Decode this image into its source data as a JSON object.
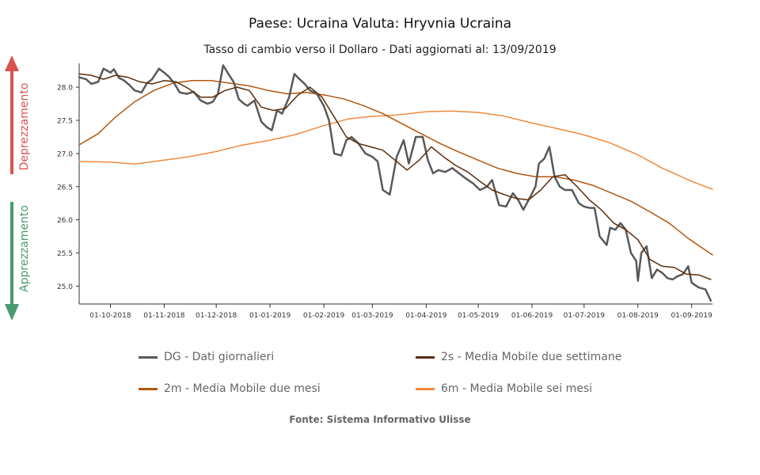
{
  "chart_data": {
    "type": "line",
    "title": "Paese: Ucraina Valuta: Hryvnia Ucraina",
    "subtitle": "Tasso di cambio verso il Dollaro - Dati aggiornati al: 13/09/2019",
    "source": "Fonte: Sistema Informativo Ulisse",
    "side_labels": {
      "up": "Deprezzamento",
      "down": "Apprezzamento"
    },
    "side_colors": {
      "up": "#d9534f",
      "down": "#4a9a6f"
    },
    "x_range": [
      "2018-09-13",
      "2019-09-13"
    ],
    "x_ticks": [
      {
        "date": "2018-10-01",
        "label": "01-10-2018"
      },
      {
        "date": "2018-11-01",
        "label": "01-11-2018"
      },
      {
        "date": "2018-12-01",
        "label": "01-12-2018"
      },
      {
        "date": "2019-01-01",
        "label": "01-01-2019"
      },
      {
        "date": "2019-02-01",
        "label": "01-02-2019"
      },
      {
        "date": "2019-03-01",
        "label": "01-03-2019"
      },
      {
        "date": "2019-04-01",
        "label": "01-04-2019"
      },
      {
        "date": "2019-05-01",
        "label": "01-05-2019"
      },
      {
        "date": "2019-06-01",
        "label": "01-06-2019"
      },
      {
        "date": "2019-07-01",
        "label": "01-07-2019"
      },
      {
        "date": "2019-08-01",
        "label": "01-08-2019"
      },
      {
        "date": "2019-09-01",
        "label": "01-09-2019"
      }
    ],
    "ylim": [
      24.73,
      28.36
    ],
    "y_ticks": [
      25.0,
      25.5,
      26.0,
      26.5,
      27.0,
      27.5,
      28.0
    ],
    "legend": "bottom",
    "series": [
      {
        "name": "DG - Dati giornalieri",
        "color": "#595959",
        "width": 2.5,
        "points": [
          [
            "2018-09-13",
            28.15
          ],
          [
            "2018-09-17",
            28.12
          ],
          [
            "2018-09-20",
            28.05
          ],
          [
            "2018-09-24",
            28.08
          ],
          [
            "2018-09-27",
            28.28
          ],
          [
            "2018-10-01",
            28.22
          ],
          [
            "2018-10-03",
            28.27
          ],
          [
            "2018-10-06",
            28.14
          ],
          [
            "2018-10-09",
            28.1
          ],
          [
            "2018-10-12",
            28.03
          ],
          [
            "2018-10-15",
            27.95
          ],
          [
            "2018-10-19",
            27.92
          ],
          [
            "2018-10-22",
            28.06
          ],
          [
            "2018-10-25",
            28.12
          ],
          [
            "2018-10-29",
            28.28
          ],
          [
            "2018-11-01",
            28.22
          ],
          [
            "2018-11-04",
            28.15
          ],
          [
            "2018-11-07",
            28.05
          ],
          [
            "2018-11-10",
            27.92
          ],
          [
            "2018-11-14",
            27.9
          ],
          [
            "2018-11-18",
            27.93
          ],
          [
            "2018-11-22",
            27.8
          ],
          [
            "2018-11-26",
            27.75
          ],
          [
            "2018-11-29",
            27.78
          ],
          [
            "2018-12-02",
            27.9
          ],
          [
            "2018-12-05",
            28.33
          ],
          [
            "2018-12-08",
            28.2
          ],
          [
            "2018-12-11",
            28.08
          ],
          [
            "2018-12-14",
            27.82
          ],
          [
            "2018-12-17",
            27.75
          ],
          [
            "2018-12-19",
            27.72
          ],
          [
            "2018-12-23",
            27.8
          ],
          [
            "2018-12-27",
            27.48
          ],
          [
            "2018-12-30",
            27.4
          ],
          [
            "2019-01-02",
            27.35
          ],
          [
            "2019-01-05",
            27.65
          ],
          [
            "2019-01-08",
            27.6
          ],
          [
            "2019-01-12",
            27.85
          ],
          [
            "2019-01-15",
            28.2
          ],
          [
            "2019-01-18",
            28.12
          ],
          [
            "2019-01-21",
            28.05
          ],
          [
            "2019-01-24",
            27.95
          ],
          [
            "2019-01-28",
            27.9
          ],
          [
            "2019-02-01",
            27.72
          ],
          [
            "2019-02-04",
            27.5
          ],
          [
            "2019-02-07",
            27.0
          ],
          [
            "2019-02-11",
            26.97
          ],
          [
            "2019-02-14",
            27.2
          ],
          [
            "2019-02-17",
            27.25
          ],
          [
            "2019-02-21",
            27.15
          ],
          [
            "2019-02-25",
            27.0
          ],
          [
            "2019-03-01",
            26.95
          ],
          [
            "2019-03-04",
            26.88
          ],
          [
            "2019-03-07",
            26.45
          ],
          [
            "2019-03-11",
            26.38
          ],
          [
            "2019-03-15",
            26.95
          ],
          [
            "2019-03-19",
            27.2
          ],
          [
            "2019-03-22",
            26.85
          ],
          [
            "2019-03-26",
            27.25
          ],
          [
            "2019-03-30",
            27.25
          ],
          [
            "2019-04-02",
            26.9
          ],
          [
            "2019-04-05",
            26.7
          ],
          [
            "2019-04-08",
            26.75
          ],
          [
            "2019-04-12",
            26.72
          ],
          [
            "2019-04-16",
            26.78
          ],
          [
            "2019-04-20",
            26.7
          ],
          [
            "2019-04-24",
            26.62
          ],
          [
            "2019-04-28",
            26.55
          ],
          [
            "2019-05-02",
            26.45
          ],
          [
            "2019-05-06",
            26.5
          ],
          [
            "2019-05-09",
            26.6
          ],
          [
            "2019-05-13",
            26.22
          ],
          [
            "2019-05-17",
            26.2
          ],
          [
            "2019-05-21",
            26.4
          ],
          [
            "2019-05-24",
            26.3
          ],
          [
            "2019-05-27",
            26.15
          ],
          [
            "2019-05-31",
            26.35
          ],
          [
            "2019-06-03",
            26.5
          ],
          [
            "2019-06-05",
            26.85
          ],
          [
            "2019-06-08",
            26.92
          ],
          [
            "2019-06-11",
            27.1
          ],
          [
            "2019-06-14",
            26.65
          ],
          [
            "2019-06-17",
            26.5
          ],
          [
            "2019-06-20",
            26.45
          ],
          [
            "2019-06-24",
            26.45
          ],
          [
            "2019-06-28",
            26.25
          ],
          [
            "2019-07-01",
            26.2
          ],
          [
            "2019-07-04",
            26.18
          ],
          [
            "2019-07-07",
            26.18
          ],
          [
            "2019-07-10",
            25.75
          ],
          [
            "2019-07-14",
            25.62
          ],
          [
            "2019-07-16",
            25.88
          ],
          [
            "2019-07-19",
            25.85
          ],
          [
            "2019-07-22",
            25.95
          ],
          [
            "2019-07-25",
            25.85
          ],
          [
            "2019-07-28",
            25.5
          ],
          [
            "2019-07-31",
            25.38
          ],
          [
            "2019-08-01",
            25.08
          ],
          [
            "2019-08-03",
            25.5
          ],
          [
            "2019-08-06",
            25.6
          ],
          [
            "2019-08-09",
            25.12
          ],
          [
            "2019-08-12",
            25.25
          ],
          [
            "2019-08-15",
            25.2
          ],
          [
            "2019-08-18",
            25.12
          ],
          [
            "2019-08-21",
            25.1
          ],
          [
            "2019-08-24",
            25.15
          ],
          [
            "2019-08-27",
            25.18
          ],
          [
            "2019-08-30",
            25.3
          ],
          [
            "2019-09-01",
            25.05
          ],
          [
            "2019-09-05",
            24.98
          ],
          [
            "2019-09-09",
            24.95
          ],
          [
            "2019-09-12",
            24.78
          ]
        ]
      },
      {
        "name": "2s - Media Mobile due settimane",
        "color": "#5a2d0c",
        "width": 1.5,
        "points": [
          [
            "2018-09-13",
            28.2
          ],
          [
            "2018-09-20",
            28.18
          ],
          [
            "2018-09-27",
            28.12
          ],
          [
            "2018-10-04",
            28.18
          ],
          [
            "2018-10-11",
            28.15
          ],
          [
            "2018-10-18",
            28.08
          ],
          [
            "2018-10-25",
            28.05
          ],
          [
            "2018-11-01",
            28.1
          ],
          [
            "2018-11-08",
            28.08
          ],
          [
            "2018-11-15",
            27.98
          ],
          [
            "2018-11-22",
            27.85
          ],
          [
            "2018-11-29",
            27.85
          ],
          [
            "2018-12-06",
            27.95
          ],
          [
            "2018-12-13",
            28.0
          ],
          [
            "2018-12-20",
            27.95
          ],
          [
            "2018-12-27",
            27.7
          ],
          [
            "2019-01-03",
            27.65
          ],
          [
            "2019-01-10",
            27.68
          ],
          [
            "2019-01-17",
            27.88
          ],
          [
            "2019-01-24",
            28.0
          ],
          [
            "2019-01-31",
            27.85
          ],
          [
            "2019-02-07",
            27.55
          ],
          [
            "2019-02-14",
            27.25
          ],
          [
            "2019-02-21",
            27.15
          ],
          [
            "2019-02-28",
            27.1
          ],
          [
            "2019-03-07",
            27.05
          ],
          [
            "2019-03-14",
            26.9
          ],
          [
            "2019-03-21",
            26.75
          ],
          [
            "2019-03-28",
            26.9
          ],
          [
            "2019-04-04",
            27.1
          ],
          [
            "2019-04-11",
            26.95
          ],
          [
            "2019-04-18",
            26.82
          ],
          [
            "2019-04-25",
            26.72
          ],
          [
            "2019-05-02",
            26.58
          ],
          [
            "2019-05-09",
            26.45
          ],
          [
            "2019-05-16",
            26.38
          ],
          [
            "2019-05-23",
            26.32
          ],
          [
            "2019-05-30",
            26.3
          ],
          [
            "2019-06-06",
            26.45
          ],
          [
            "2019-06-13",
            26.65
          ],
          [
            "2019-06-20",
            26.68
          ],
          [
            "2019-06-27",
            26.5
          ],
          [
            "2019-07-04",
            26.3
          ],
          [
            "2019-07-11",
            26.15
          ],
          [
            "2019-07-18",
            25.95
          ],
          [
            "2019-07-25",
            25.85
          ],
          [
            "2019-08-01",
            25.7
          ],
          [
            "2019-08-08",
            25.4
          ],
          [
            "2019-08-15",
            25.3
          ],
          [
            "2019-08-22",
            25.28
          ],
          [
            "2019-08-29",
            25.18
          ],
          [
            "2019-09-05",
            25.17
          ],
          [
            "2019-09-12",
            25.1
          ]
        ]
      },
      {
        "name": "2m - Media Mobile due mesi",
        "color": "#b2560f",
        "width": 1.5,
        "points": [
          [
            "2018-09-13",
            27.13
          ],
          [
            "2018-09-24",
            27.3
          ],
          [
            "2018-10-04",
            27.55
          ],
          [
            "2018-10-15",
            27.78
          ],
          [
            "2018-10-26",
            27.95
          ],
          [
            "2018-11-06",
            28.06
          ],
          [
            "2018-11-17",
            28.1
          ],
          [
            "2018-11-28",
            28.1
          ],
          [
            "2018-12-09",
            28.06
          ],
          [
            "2018-12-20",
            28.02
          ],
          [
            "2018-12-31",
            27.95
          ],
          [
            "2019-01-11",
            27.9
          ],
          [
            "2019-01-22",
            27.92
          ],
          [
            "2019-02-02",
            27.88
          ],
          [
            "2019-02-13",
            27.82
          ],
          [
            "2019-02-24",
            27.72
          ],
          [
            "2019-03-07",
            27.6
          ],
          [
            "2019-03-18",
            27.45
          ],
          [
            "2019-03-29",
            27.3
          ],
          [
            "2019-04-09",
            27.15
          ],
          [
            "2019-04-20",
            27.02
          ],
          [
            "2019-05-01",
            26.9
          ],
          [
            "2019-05-12",
            26.78
          ],
          [
            "2019-05-23",
            26.7
          ],
          [
            "2019-06-03",
            26.65
          ],
          [
            "2019-06-14",
            26.65
          ],
          [
            "2019-06-25",
            26.6
          ],
          [
            "2019-07-06",
            26.52
          ],
          [
            "2019-07-17",
            26.4
          ],
          [
            "2019-07-28",
            26.28
          ],
          [
            "2019-08-08",
            26.12
          ],
          [
            "2019-08-19",
            25.95
          ],
          [
            "2019-08-30",
            25.72
          ],
          [
            "2019-09-13",
            25.47
          ]
        ]
      },
      {
        "name": "6m - Media Mobile sei mesi",
        "color": "#f08a3c",
        "width": 1.5,
        "points": [
          [
            "2018-09-13",
            26.88
          ],
          [
            "2018-10-01",
            26.87
          ],
          [
            "2018-10-15",
            26.84
          ],
          [
            "2018-11-01",
            26.9
          ],
          [
            "2018-11-15",
            26.95
          ],
          [
            "2018-12-01",
            27.03
          ],
          [
            "2018-12-15",
            27.12
          ],
          [
            "2019-01-01",
            27.2
          ],
          [
            "2019-01-15",
            27.28
          ],
          [
            "2019-02-01",
            27.42
          ],
          [
            "2019-02-15",
            27.52
          ],
          [
            "2019-03-01",
            27.56
          ],
          [
            "2019-03-15",
            27.58
          ],
          [
            "2019-04-01",
            27.63
          ],
          [
            "2019-04-15",
            27.64
          ],
          [
            "2019-05-01",
            27.62
          ],
          [
            "2019-05-15",
            27.57
          ],
          [
            "2019-06-01",
            27.46
          ],
          [
            "2019-06-15",
            27.38
          ],
          [
            "2019-07-01",
            27.28
          ],
          [
            "2019-07-15",
            27.17
          ],
          [
            "2019-08-01",
            26.98
          ],
          [
            "2019-08-15",
            26.78
          ],
          [
            "2019-09-01",
            26.58
          ],
          [
            "2019-09-13",
            26.46
          ]
        ]
      }
    ]
  }
}
